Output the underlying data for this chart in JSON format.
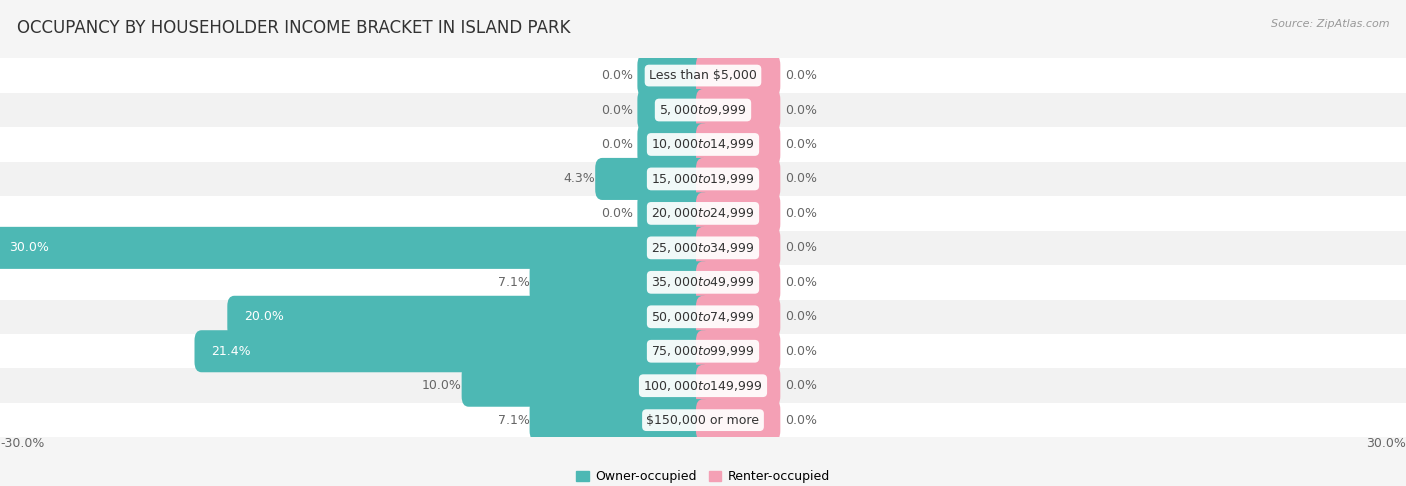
{
  "title": "OCCUPANCY BY HOUSEHOLDER INCOME BRACKET IN ISLAND PARK",
  "source": "Source: ZipAtlas.com",
  "categories": [
    "Less than $5,000",
    "$5,000 to $9,999",
    "$10,000 to $14,999",
    "$15,000 to $19,999",
    "$20,000 to $24,999",
    "$25,000 to $34,999",
    "$35,000 to $49,999",
    "$50,000 to $74,999",
    "$75,000 to $99,999",
    "$100,000 to $149,999",
    "$150,000 or more"
  ],
  "owner_values": [
    0.0,
    0.0,
    0.0,
    4.3,
    0.0,
    30.0,
    7.1,
    20.0,
    21.4,
    10.0,
    7.1
  ],
  "renter_values": [
    0.0,
    0.0,
    0.0,
    0.0,
    0.0,
    0.0,
    0.0,
    0.0,
    0.0,
    0.0,
    0.0
  ],
  "owner_color": "#4db8b4",
  "renter_color": "#f4a0b5",
  "renter_stub": 3.0,
  "owner_stub": 2.5,
  "xlim": 30.0,
  "row_bg_odd": "#f2f2f2",
  "row_bg_even": "#ffffff",
  "bar_height": 0.62,
  "title_fontsize": 12,
  "label_fontsize": 9,
  "cat_fontsize": 9,
  "source_fontsize": 8,
  "axis_label_fontsize": 9,
  "fig_bg": "#f5f5f5",
  "text_color_dark": "#333333",
  "text_color_mid": "#666666",
  "text_color_white": "#ffffff"
}
